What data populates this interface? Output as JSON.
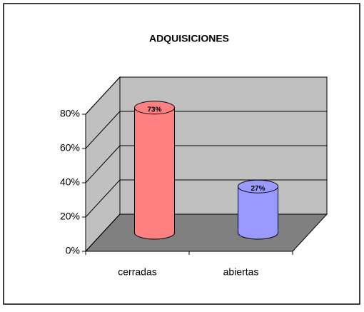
{
  "chart_data": {
    "type": "bar3d",
    "title": "ADQUISICIONES",
    "categories": [
      "cerradas",
      "abiertas"
    ],
    "values": [
      73,
      27
    ],
    "value_labels": [
      "73%",
      "27%"
    ],
    "colors": [
      "#ff8080",
      "#9999ff"
    ],
    "ylim": [
      0,
      80
    ],
    "yticks": [
      {
        "value": 0,
        "label": "0%"
      },
      {
        "value": 20,
        "label": "20%"
      },
      {
        "value": 40,
        "label": "40%"
      },
      {
        "value": 60,
        "label": "60%"
      },
      {
        "value": 80,
        "label": "80%"
      }
    ],
    "grid": true
  }
}
